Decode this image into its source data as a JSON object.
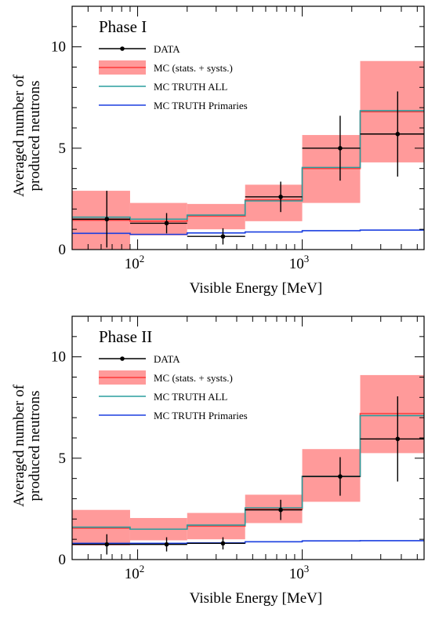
{
  "chart_data": [
    {
      "type": "step",
      "panel_label": "Phase I",
      "ylabel_line1": "Averaged number of",
      "ylabel_line2": "produced neutrons",
      "xlabel": "Visible Energy [MeV]",
      "xscale": "log",
      "xlim": [
        40,
        5500
      ],
      "ylim": [
        0,
        12
      ],
      "yticks": [
        0,
        5,
        10
      ],
      "xticks": [
        {
          "value": 100,
          "base": "10",
          "exp": "2"
        },
        {
          "value": 1000,
          "base": "10",
          "exp": "3"
        }
      ],
      "legend_position": "top-left",
      "bin_edges": [
        40,
        90,
        200,
        450,
        1000,
        2250,
        5500
      ],
      "series": [
        {
          "name": "DATA",
          "kind": "points",
          "color": "#000000",
          "x": [
            65,
            150,
            330,
            740,
            1700,
            3800
          ],
          "y": [
            1.5,
            1.3,
            0.65,
            2.6,
            5.0,
            5.7
          ],
          "yerr": [
            1.4,
            0.5,
            0.4,
            0.75,
            1.6,
            2.1
          ],
          "xerr_low": [
            40,
            90,
            200,
            450,
            1000,
            2250
          ],
          "xerr_high": [
            90,
            200,
            450,
            1000,
            2250,
            5500
          ]
        },
        {
          "name": "MC (stats. + systs.)",
          "kind": "band",
          "color": "#ff3b3b",
          "fill": "#ff9a9a",
          "central": [
            1.45,
            1.4,
            1.65,
            2.45,
            4.0,
            6.8
          ],
          "low": [
            0.0,
            0.7,
            1.0,
            1.4,
            2.3,
            4.3
          ],
          "high": [
            2.9,
            2.3,
            2.25,
            3.2,
            5.65,
            9.3
          ]
        },
        {
          "name": "MC TRUTH ALL",
          "kind": "step",
          "color": "#2a9d9d",
          "values": [
            1.6,
            1.5,
            1.7,
            2.4,
            4.05,
            6.85
          ]
        },
        {
          "name": "MC TRUTH Primaries",
          "kind": "step",
          "color": "#1a3fe0",
          "values": [
            0.8,
            0.75,
            0.82,
            0.87,
            0.93,
            0.96
          ]
        }
      ]
    },
    {
      "type": "step",
      "panel_label": "Phase II",
      "ylabel_line1": "Averaged number of",
      "ylabel_line2": "produced neutrons",
      "xlabel": "Visible Energy [MeV]",
      "xscale": "log",
      "xlim": [
        40,
        5500
      ],
      "ylim": [
        0,
        12
      ],
      "yticks": [
        0,
        5,
        10
      ],
      "xticks": [
        {
          "value": 100,
          "base": "10",
          "exp": "2"
        },
        {
          "value": 1000,
          "base": "10",
          "exp": "3"
        }
      ],
      "legend_position": "top-left",
      "bin_edges": [
        40,
        90,
        200,
        450,
        1000,
        2250,
        5500
      ],
      "series": [
        {
          "name": "DATA",
          "kind": "points",
          "color": "#000000",
          "x": [
            65,
            150,
            330,
            740,
            1700,
            3800
          ],
          "y": [
            0.75,
            0.75,
            0.8,
            2.45,
            4.1,
            5.95
          ],
          "yerr": [
            0.5,
            0.35,
            0.3,
            0.5,
            0.95,
            2.1
          ],
          "xerr_low": [
            40,
            90,
            200,
            450,
            1000,
            2250
          ],
          "xerr_high": [
            90,
            200,
            450,
            1000,
            2250,
            5500
          ]
        },
        {
          "name": "MC (stats. + systs.)",
          "kind": "band",
          "color": "#ff3b3b",
          "fill": "#ff9a9a",
          "central": [
            1.55,
            1.5,
            1.65,
            2.5,
            4.1,
            7.2
          ],
          "low": [
            0.7,
            0.95,
            1.0,
            1.8,
            2.85,
            5.25
          ],
          "high": [
            2.45,
            2.05,
            2.3,
            3.2,
            5.45,
            9.1
          ]
        },
        {
          "name": "MC TRUTH ALL",
          "kind": "step",
          "color": "#2a9d9d",
          "values": [
            1.6,
            1.5,
            1.7,
            2.55,
            4.1,
            7.1
          ]
        },
        {
          "name": "MC TRUTH Primaries",
          "kind": "step",
          "color": "#1a3fe0",
          "values": [
            0.8,
            0.8,
            0.82,
            0.88,
            0.92,
            0.93
          ]
        }
      ]
    }
  ]
}
